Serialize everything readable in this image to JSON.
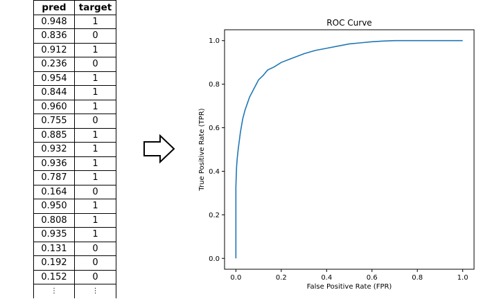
{
  "table": {
    "headers": [
      "pred",
      "target"
    ],
    "rows": [
      [
        "0.948",
        "1"
      ],
      [
        "0.836",
        "0"
      ],
      [
        "0.912",
        "1"
      ],
      [
        "0.236",
        "0"
      ],
      [
        "0.954",
        "1"
      ],
      [
        "0.844",
        "1"
      ],
      [
        "0.960",
        "1"
      ],
      [
        "0.755",
        "0"
      ],
      [
        "0.885",
        "1"
      ],
      [
        "0.932",
        "1"
      ],
      [
        "0.936",
        "1"
      ],
      [
        "0.787",
        "1"
      ],
      [
        "0.164",
        "0"
      ],
      [
        "0.950",
        "1"
      ],
      [
        "0.808",
        "1"
      ],
      [
        "0.935",
        "1"
      ],
      [
        "0.131",
        "0"
      ],
      [
        "0.192",
        "0"
      ],
      [
        "0.152",
        "0"
      ]
    ],
    "ellipsis": [
      "⋮",
      "⋮"
    ]
  },
  "arrow": {
    "icon": "right-arrow-icon"
  },
  "chart_data": {
    "type": "line",
    "title": "ROC Curve",
    "xlabel": "False Positive Rate (FPR)",
    "ylabel": "True Positive Rate (TPR)",
    "xlim": [
      -0.05,
      1.05
    ],
    "ylim": [
      -0.05,
      1.05
    ],
    "xticks": [
      0.0,
      0.2,
      0.4,
      0.6,
      0.8,
      1.0
    ],
    "yticks": [
      0.0,
      0.2,
      0.4,
      0.6,
      0.8,
      1.0
    ],
    "tick_labels": [
      "0.0",
      "0.2",
      "0.4",
      "0.6",
      "0.8",
      "1.0"
    ],
    "grid": false,
    "line_color": "#1f77b4",
    "series": [
      {
        "x": [
          0.0,
          0.0,
          0.0,
          0.003,
          0.006,
          0.01,
          0.015,
          0.02,
          0.03,
          0.04,
          0.05,
          0.06,
          0.08,
          0.1,
          0.12,
          0.14,
          0.17,
          0.2,
          0.25,
          0.3,
          0.35,
          0.4,
          0.45,
          0.5,
          0.55,
          0.6,
          0.65,
          0.7,
          0.8,
          0.9,
          1.0
        ],
        "y": [
          0.0,
          0.2,
          0.33,
          0.42,
          0.46,
          0.5,
          0.54,
          0.58,
          0.64,
          0.68,
          0.71,
          0.74,
          0.78,
          0.82,
          0.84,
          0.865,
          0.88,
          0.9,
          0.92,
          0.94,
          0.955,
          0.965,
          0.975,
          0.985,
          0.99,
          0.995,
          0.998,
          1.0,
          1.0,
          1.0,
          1.0
        ]
      }
    ]
  }
}
